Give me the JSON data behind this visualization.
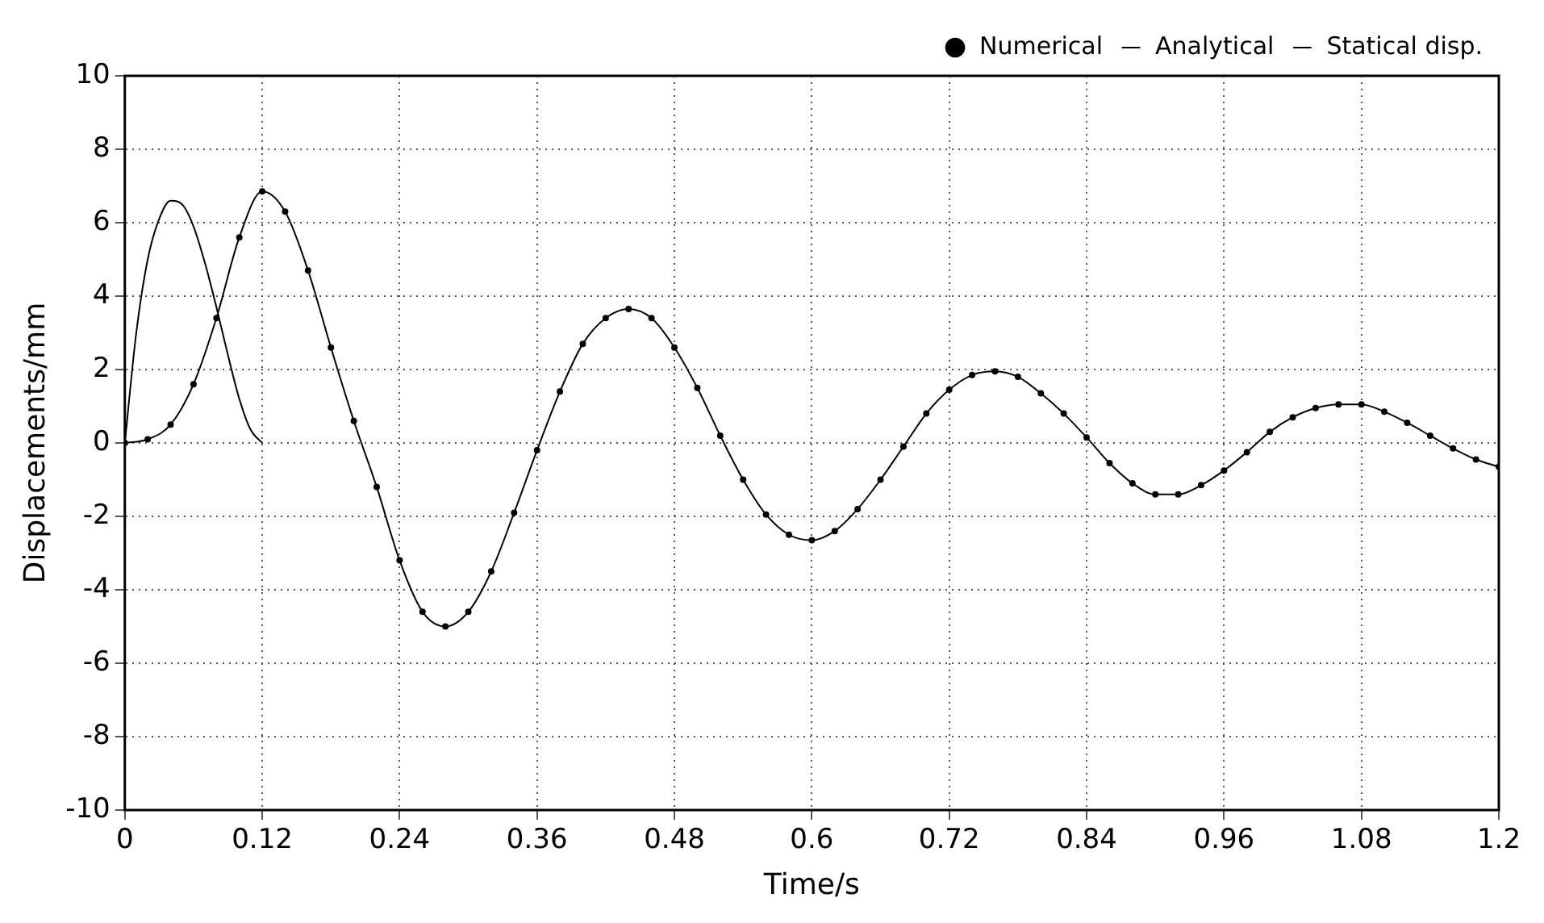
{
  "chart_data": {
    "type": "line",
    "xlabel": "Time/s",
    "ylabel": "Displacements/mm",
    "xlim": [
      0,
      1.2
    ],
    "xticks": [
      0,
      0.12,
      0.24,
      0.36,
      0.48,
      0.6,
      0.72,
      0.84,
      0.96,
      1.08,
      1.2
    ],
    "ylim": [
      -10,
      10
    ],
    "yticks": [
      -10,
      -8,
      -6,
      -4,
      -2,
      0,
      2,
      4,
      6,
      8,
      10
    ],
    "grid": true,
    "legend": "top right",
    "line_style": "solid",
    "series": [
      {
        "name": "Numerical",
        "type": "scatter",
        "marker": "circle",
        "color": "#000000",
        "x": [
          0,
          0.02,
          0.04,
          0.06,
          0.08,
          0.1,
          0.12,
          0.14,
          0.16,
          0.18,
          0.2,
          0.22,
          0.24,
          0.26,
          0.28,
          0.3,
          0.32,
          0.34,
          0.36,
          0.38,
          0.4,
          0.42,
          0.44,
          0.46,
          0.48,
          0.5,
          0.52,
          0.54,
          0.56,
          0.58,
          0.6,
          0.62,
          0.64,
          0.66,
          0.68,
          0.7,
          0.72,
          0.74,
          0.76,
          0.78,
          0.8,
          0.82,
          0.84,
          0.86,
          0.88,
          0.9,
          0.92,
          0.94,
          0.96,
          0.98,
          1,
          1.02,
          1.04,
          1.06,
          1.08,
          1.1,
          1.12,
          1.14,
          1.16,
          1.18,
          1.2
        ],
        "values": [
          0,
          0.1,
          0.5,
          1.6,
          3.4,
          5.6,
          6.85,
          6.3,
          4.7,
          2.6,
          0.6,
          -1.2,
          -3.2,
          -4.6,
          -5,
          -4.6,
          -3.5,
          -1.9,
          -0.2,
          1.4,
          2.7,
          3.4,
          3.65,
          3.4,
          2.6,
          1.5,
          0.2,
          -1,
          -1.95,
          -2.5,
          -2.65,
          -2.4,
          -1.8,
          -1,
          -0.1,
          0.8,
          1.45,
          1.85,
          1.95,
          1.8,
          1.35,
          0.8,
          0.15,
          -0.55,
          -1.1,
          -1.4,
          -1.4,
          -1.15,
          -0.75,
          -0.25,
          0.3,
          0.7,
          0.95,
          1.05,
          1.05,
          0.85,
          0.55,
          0.2,
          -0.15,
          -0.45,
          -0.65
        ]
      },
      {
        "name": "Analytical",
        "type": "line",
        "marker": "none",
        "color": "#000000",
        "x": [
          0,
          0.02,
          0.04,
          0.06,
          0.08,
          0.1,
          0.12,
          0.14,
          0.16,
          0.18,
          0.2,
          0.22,
          0.24,
          0.26,
          0.28,
          0.3,
          0.32,
          0.34,
          0.36,
          0.38,
          0.4,
          0.42,
          0.44,
          0.46,
          0.48,
          0.5,
          0.52,
          0.54,
          0.56,
          0.58,
          0.6,
          0.62,
          0.64,
          0.66,
          0.68,
          0.7,
          0.72,
          0.74,
          0.76,
          0.78,
          0.8,
          0.82,
          0.84,
          0.86,
          0.88,
          0.9,
          0.92,
          0.94,
          0.96,
          0.98,
          1,
          1.02,
          1.04,
          1.06,
          1.08,
          1.1,
          1.12,
          1.14,
          1.16,
          1.18,
          1.2
        ],
        "values": [
          0,
          0.1,
          0.5,
          1.6,
          3.4,
          5.6,
          6.85,
          6.3,
          4.7,
          2.6,
          0.6,
          -1.2,
          -3.2,
          -4.6,
          -5,
          -4.6,
          -3.5,
          -1.9,
          -0.2,
          1.4,
          2.7,
          3.4,
          3.65,
          3.4,
          2.6,
          1.5,
          0.2,
          -1,
          -1.95,
          -2.5,
          -2.65,
          -2.4,
          -1.8,
          -1,
          -0.1,
          0.8,
          1.45,
          1.85,
          1.95,
          1.8,
          1.35,
          0.8,
          0.15,
          -0.55,
          -1.1,
          -1.4,
          -1.4,
          -1.15,
          -0.75,
          -0.25,
          0.3,
          0.7,
          0.95,
          1.05,
          1.05,
          0.85,
          0.55,
          0.2,
          -0.15,
          -0.45,
          -0.65
        ]
      },
      {
        "name": "Statical disp.",
        "type": "line",
        "marker": "none",
        "color": "#000000",
        "x": [
          0,
          0.01,
          0.02,
          0.03,
          0.04,
          0.05,
          0.06,
          0.07,
          0.08,
          0.09,
          0.1,
          0.11,
          0.12
        ],
        "values": [
          0,
          3,
          5,
          6.1,
          6.6,
          6.5,
          5.9,
          4.9,
          3.7,
          2.4,
          1.2,
          0.35,
          0
        ]
      }
    ]
  }
}
